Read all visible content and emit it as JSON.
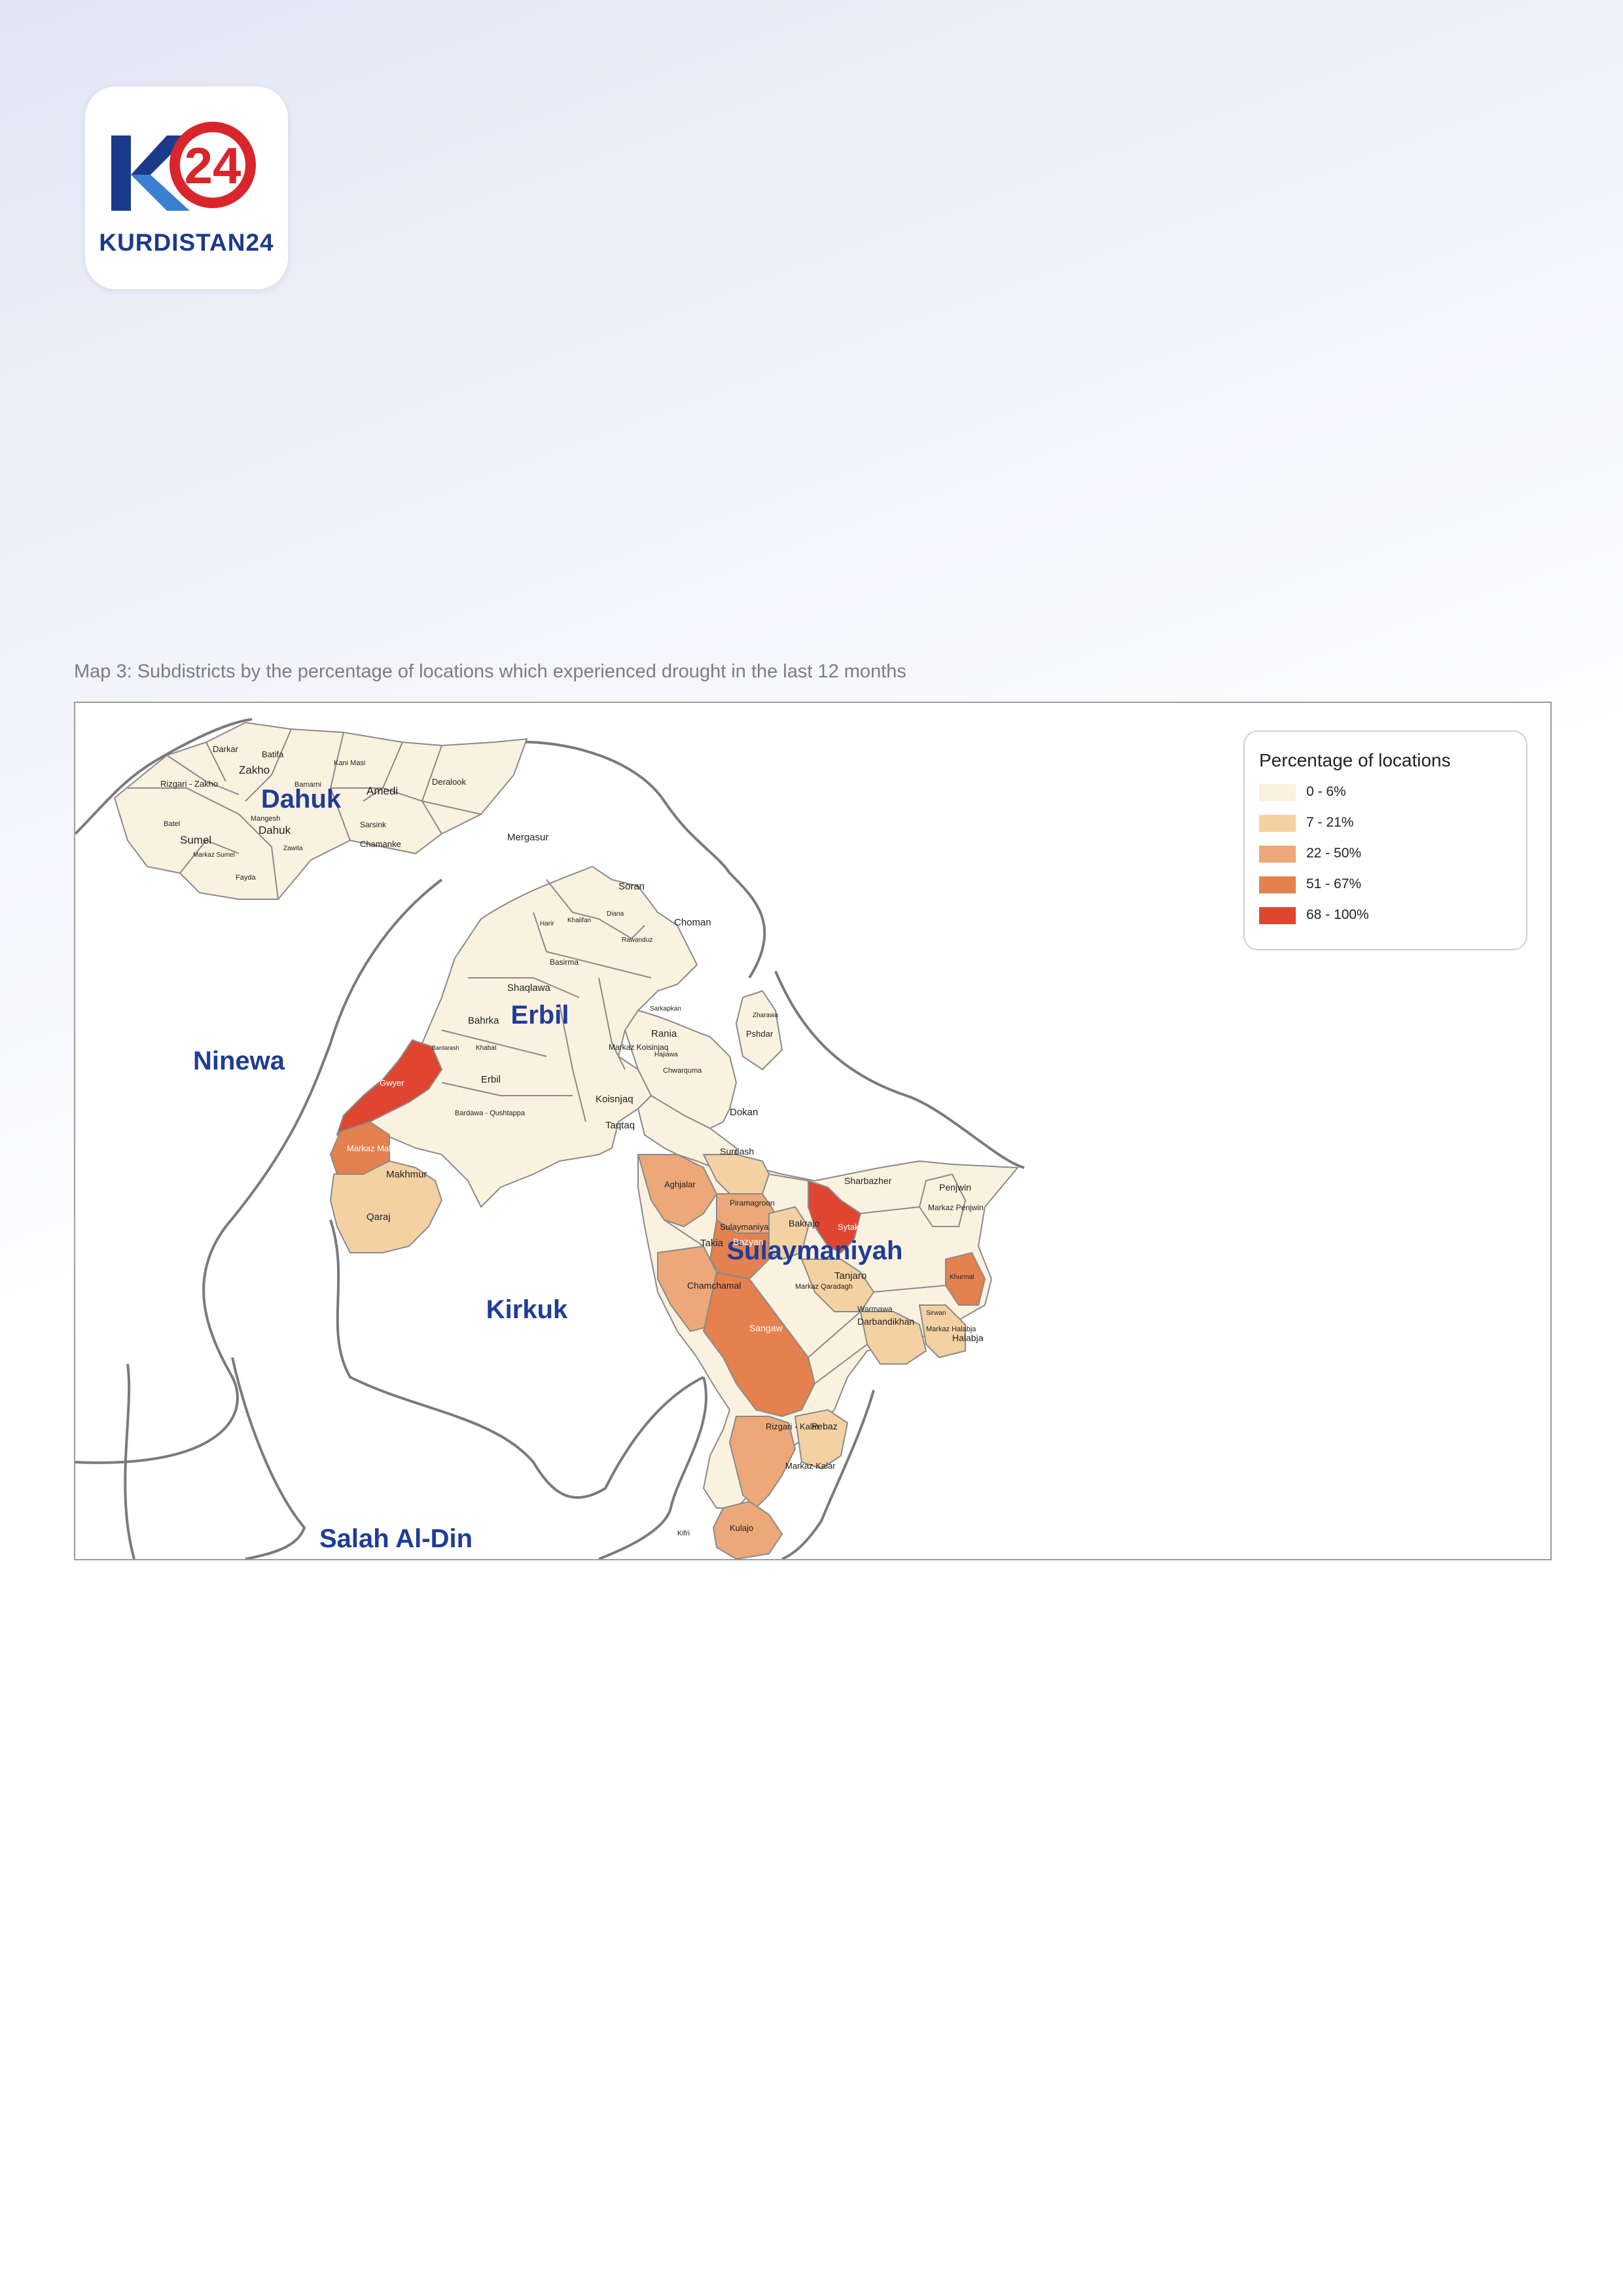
{
  "brand": {
    "wordmark": "KURDISTAN24",
    "logo_number": "24",
    "logo_letter": "K"
  },
  "caption": "Map 3: Subdistricts by the percentage of locations which experienced drought in the last 12 months",
  "legend": {
    "title": "Percentage of locations",
    "items": [
      {
        "label": "0 - 6%",
        "color": "#fbf1df"
      },
      {
        "label": "7 - 21%",
        "color": "#f3d1a3"
      },
      {
        "label": "22 - 50%",
        "color": "#eca878"
      },
      {
        "label": "51 - 67%",
        "color": "#e5804f"
      },
      {
        "label": "68 - 100%",
        "color": "#df4632"
      }
    ]
  },
  "colors": {
    "accent_blue": "#1f3d96",
    "logo_red": "#d7262c",
    "logo_blue": "#1b3a8a",
    "border_gray": "#6b6b6b"
  },
  "governorates": [
    "Dahuk",
    "Erbil",
    "Ninewa",
    "Sulaymaniyah",
    "Kirkuk",
    "Salah Al-Din"
  ],
  "subdistricts": {
    "dahuk": [
      "Darkar",
      "Batifa",
      "Zakho",
      "Rizgari - Zakho",
      "Bamarni",
      "Kani Masi",
      "Deralook",
      "Amedi",
      "Mangesh",
      "Dahuk",
      "Batel",
      "Sumel",
      "Markaz Sumel",
      "Zawita",
      "Sarsink",
      "Chamanke",
      "Fayda"
    ],
    "erbil": [
      "Mergasur",
      "Soran",
      "Harir",
      "Khalifan",
      "Diana",
      "Rawanduz",
      "Choman",
      "Basirma",
      "Shaqlawa",
      "Bahrka",
      "Khabat",
      "Erbil",
      "Gwyer",
      "Bardarash",
      "Sarkapkan",
      "Rania",
      "Hajiawa",
      "Chwarquma",
      "Pshdar",
      "Zharawa",
      "Markaz Koisinjaq",
      "Koisnjaq",
      "Taqtaq",
      "Markaz Makhmur",
      "Makhmur",
      "Qaraj",
      "Bardawa - Qushtappa",
      "Dokan",
      "Surdash"
    ],
    "sulaymaniyah": [
      "Aghjalar",
      "Piramagroon",
      "Sulaymaniya",
      "Bakrajo",
      "Sytak",
      "Sharbazher",
      "Penjwin",
      "Markaz Penjwin",
      "Bazyan",
      "Takia",
      "Chamchamal",
      "Sangaw",
      "Tanjaro",
      "Markaz Qaradagh",
      "Khurmal",
      "Warmawa",
      "Darbandikhan",
      "Sirwan",
      "Markaz Halabja",
      "Halabja",
      "Rizgari - Kalar",
      "Pebaz",
      "Markaz Kalar",
      "Kulajo",
      "Kifri"
    ]
  }
}
